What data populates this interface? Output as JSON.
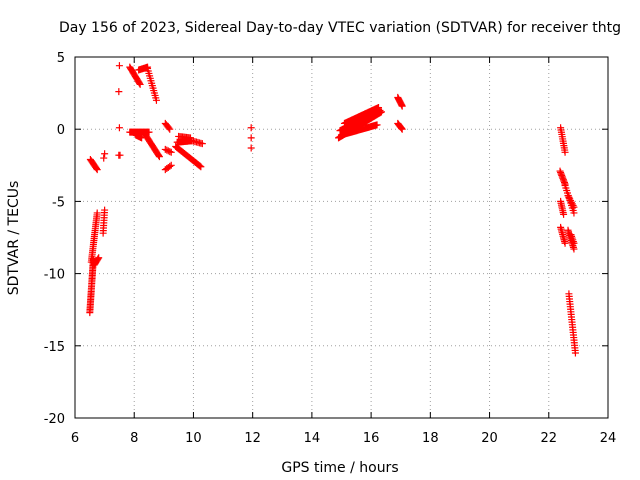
{
  "chart_data": {
    "type": "scatter",
    "title": "Day 156 of 2023, Sidereal Day-to-day VTEC variation (SDTVAR) for receiver thtg",
    "xlabel": "GPS time / hours",
    "ylabel": "SDTVAR / TECUs",
    "xlim": [
      6,
      24
    ],
    "ylim": [
      -20,
      5
    ],
    "x_ticks": [
      6,
      8,
      10,
      12,
      14,
      16,
      18,
      20,
      22,
      24
    ],
    "y_ticks": [
      -20,
      -15,
      -10,
      -5,
      0,
      5
    ],
    "x_tick_labels": [
      "6",
      "8",
      "10",
      "12",
      "14",
      "16",
      "18",
      "20",
      "22",
      "24"
    ],
    "y_tick_labels": [
      "-20",
      "-15",
      "-10",
      "-5",
      "0",
      "5"
    ],
    "grid": true,
    "marker": "+",
    "color": "#ff0000",
    "segments": [
      {
        "x0": 6.5,
        "y0": -12.7,
        "x1": 6.62,
        "y1": -9.0,
        "n": 34
      },
      {
        "x0": 6.55,
        "y0": -9.2,
        "x1": 6.75,
        "y1": -5.8,
        "n": 26
      },
      {
        "x0": 6.65,
        "y0": -9.4,
        "x1": 6.8,
        "y1": -8.9,
        "n": 8
      },
      {
        "x0": 6.52,
        "y0": -2.1,
        "x1": 6.75,
        "y1": -2.8,
        "n": 10
      },
      {
        "x0": 6.95,
        "y0": -7.2,
        "x1": 7.0,
        "y1": -5.6,
        "n": 10
      },
      {
        "x0": 6.97,
        "y0": -2.0,
        "x1": 7.0,
        "y1": -1.7,
        "n": 2
      },
      {
        "x0": 7.5,
        "y0": 4.4,
        "x1": 7.5,
        "y1": 4.4,
        "n": 1
      },
      {
        "x0": 7.48,
        "y0": 2.6,
        "x1": 7.48,
        "y1": 2.6,
        "n": 1
      },
      {
        "x0": 7.5,
        "y0": 0.1,
        "x1": 7.5,
        "y1": 0.1,
        "n": 1
      },
      {
        "x0": 7.48,
        "y0": -1.8,
        "x1": 7.52,
        "y1": -1.8,
        "n": 2
      },
      {
        "x0": 7.85,
        "y0": 4.3,
        "x1": 8.2,
        "y1": 3.1,
        "n": 16
      },
      {
        "x0": 8.15,
        "y0": 4.1,
        "x1": 8.45,
        "y1": 4.3,
        "n": 10
      },
      {
        "x0": 8.45,
        "y0": 4.2,
        "x1": 8.75,
        "y1": 2.0,
        "n": 14
      },
      {
        "x0": 7.85,
        "y0": -0.2,
        "x1": 8.5,
        "y1": -0.2,
        "n": 26
      },
      {
        "x0": 8.35,
        "y0": -0.3,
        "x1": 8.85,
        "y1": -1.9,
        "n": 22
      },
      {
        "x0": 8.05,
        "y0": -0.4,
        "x1": 8.25,
        "y1": -0.6,
        "n": 8
      },
      {
        "x0": 9.05,
        "y0": 0.4,
        "x1": 9.2,
        "y1": 0.0,
        "n": 6
      },
      {
        "x0": 9.05,
        "y0": -1.4,
        "x1": 9.25,
        "y1": -1.6,
        "n": 5
      },
      {
        "x0": 9.05,
        "y0": -2.8,
        "x1": 9.25,
        "y1": -2.5,
        "n": 5
      },
      {
        "x0": 9.45,
        "y0": -0.9,
        "x1": 9.95,
        "y1": -0.8,
        "n": 20
      },
      {
        "x0": 9.4,
        "y0": -1.2,
        "x1": 10.25,
        "y1": -2.6,
        "n": 30
      },
      {
        "x0": 9.5,
        "y0": -0.5,
        "x1": 9.9,
        "y1": -0.6,
        "n": 10
      },
      {
        "x0": 9.95,
        "y0": -0.8,
        "x1": 10.3,
        "y1": -1.0,
        "n": 8
      },
      {
        "x0": 11.95,
        "y0": 0.1,
        "x1": 11.95,
        "y1": 0.1,
        "n": 1
      },
      {
        "x0": 11.95,
        "y0": -0.6,
        "x1": 11.95,
        "y1": -0.6,
        "n": 1
      },
      {
        "x0": 11.95,
        "y0": -1.3,
        "x1": 11.95,
        "y1": -1.3,
        "n": 1
      },
      {
        "x0": 14.9,
        "y0": -0.6,
        "x1": 16.35,
        "y1": 1.2,
        "n": 55
      },
      {
        "x0": 14.95,
        "y0": -0.1,
        "x1": 16.3,
        "y1": 1.3,
        "n": 50
      },
      {
        "x0": 15.1,
        "y0": 0.4,
        "x1": 16.25,
        "y1": 1.5,
        "n": 40
      },
      {
        "x0": 15.0,
        "y0": -0.4,
        "x1": 16.2,
        "y1": 0.3,
        "n": 40
      },
      {
        "x0": 16.9,
        "y0": 2.2,
        "x1": 17.05,
        "y1": 1.6,
        "n": 10
      },
      {
        "x0": 16.9,
        "y0": 0.4,
        "x1": 17.05,
        "y1": 0.0,
        "n": 8
      },
      {
        "x0": 22.4,
        "y0": 0.1,
        "x1": 22.55,
        "y1": -1.6,
        "n": 12
      },
      {
        "x0": 22.38,
        "y0": -2.9,
        "x1": 22.55,
        "y1": -3.8,
        "n": 10
      },
      {
        "x0": 22.4,
        "y0": -5.0,
        "x1": 22.5,
        "y1": -5.9,
        "n": 8
      },
      {
        "x0": 22.4,
        "y0": -6.8,
        "x1": 22.55,
        "y1": -7.9,
        "n": 10
      },
      {
        "x0": 22.55,
        "y0": -3.9,
        "x1": 22.85,
        "y1": -5.8,
        "n": 12
      },
      {
        "x0": 22.65,
        "y0": -4.6,
        "x1": 22.85,
        "y1": -5.4,
        "n": 8
      },
      {
        "x0": 22.65,
        "y0": -7.0,
        "x1": 22.85,
        "y1": -8.3,
        "n": 12
      },
      {
        "x0": 22.75,
        "y0": -7.3,
        "x1": 22.85,
        "y1": -7.9,
        "n": 6
      },
      {
        "x0": 22.68,
        "y0": -11.4,
        "x1": 22.9,
        "y1": -15.5,
        "n": 24
      }
    ]
  }
}
